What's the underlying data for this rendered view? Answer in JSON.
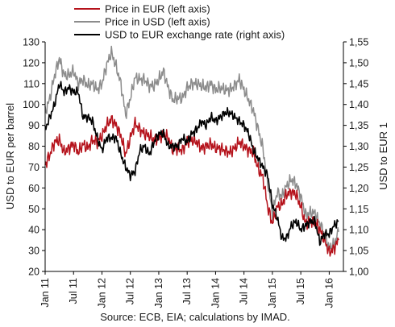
{
  "chart_data": {
    "type": "line",
    "title": "",
    "source": "Source: ECB, EIA; calculations by IMAD.",
    "left_axis": {
      "label": "USD to EUR per barrel",
      "range": [
        20,
        130
      ],
      "ticks": [
        "20",
        "30",
        "40",
        "50",
        "60",
        "70",
        "80",
        "90",
        "100",
        "110",
        "120",
        "130"
      ]
    },
    "right_axis": {
      "label": "USD to EUR 1",
      "range": [
        1.0,
        1.55
      ],
      "ticks": [
        "1,00",
        "1,05",
        "1,10",
        "1,15",
        "1,20",
        "1,25",
        "1,30",
        "1,35",
        "1,40",
        "1,45",
        "1,50",
        "1,55"
      ]
    },
    "x_axis": {
      "range": [
        "2011-01",
        "2016-04"
      ],
      "ticks": [
        "Jan 11",
        "Jul 11",
        "Jan 12",
        "Jul 12",
        "Jan 13",
        "Jul 13",
        "Jan 14",
        "Jul 14",
        "Jan 15",
        "Jul 15",
        "Jan 16"
      ]
    },
    "grid": false,
    "legend_position": "top-left",
    "x": [
      "2011-01",
      "2011-02",
      "2011-03",
      "2011-04",
      "2011-05",
      "2011-06",
      "2011-07",
      "2011-08",
      "2011-09",
      "2011-10",
      "2011-11",
      "2011-12",
      "2012-01",
      "2012-02",
      "2012-03",
      "2012-04",
      "2012-05",
      "2012-06",
      "2012-07",
      "2012-08",
      "2012-09",
      "2012-10",
      "2012-11",
      "2012-12",
      "2013-01",
      "2013-02",
      "2013-03",
      "2013-04",
      "2013-05",
      "2013-06",
      "2013-07",
      "2013-08",
      "2013-09",
      "2013-10",
      "2013-11",
      "2013-12",
      "2014-01",
      "2014-02",
      "2014-03",
      "2014-04",
      "2014-05",
      "2014-06",
      "2014-07",
      "2014-08",
      "2014-09",
      "2014-10",
      "2014-11",
      "2014-12",
      "2015-01",
      "2015-02",
      "2015-03",
      "2015-04",
      "2015-05",
      "2015-06",
      "2015-07",
      "2015-08",
      "2015-09",
      "2015-10",
      "2015-11",
      "2015-12",
      "2016-01",
      "2016-02",
      "2016-03"
    ],
    "series": [
      {
        "name": "Price in EUR (left axis)",
        "axis": "left",
        "color": "#b5121b",
        "values": [
          71,
          76,
          82,
          83,
          77,
          79,
          81,
          77,
          81,
          79,
          83,
          82,
          85,
          90,
          93,
          90,
          85,
          76,
          84,
          91,
          88,
          86,
          85,
          83,
          84,
          86,
          84,
          78,
          79,
          78,
          82,
          83,
          82,
          79,
          80,
          81,
          79,
          79,
          78,
          77,
          79,
          82,
          80,
          78,
          77,
          69,
          65,
          51,
          43,
          51,
          52,
          57,
          58,
          57,
          51,
          43,
          44,
          44,
          40,
          35,
          29,
          31,
          35
        ]
      },
      {
        "name": "Price in USD (left axis)",
        "axis": "left",
        "color": "#8c8c8c",
        "values": [
          96,
          103,
          114,
          122,
          114,
          114,
          116,
          110,
          112,
          109,
          110,
          107,
          110,
          119,
          125,
          118,
          110,
          95,
          103,
          113,
          112,
          112,
          109,
          109,
          112,
          116,
          108,
          102,
          103,
          103,
          108,
          110,
          110,
          109,
          108,
          110,
          107,
          108,
          107,
          107,
          109,
          112,
          107,
          102,
          97,
          88,
          79,
          63,
          48,
          58,
          56,
          61,
          64,
          62,
          56,
          47,
          48,
          48,
          43,
          38,
          31,
          33,
          39
        ]
      },
      {
        "name": "USD to EUR exchange rate (right axis)",
        "axis": "right",
        "color": "#000000",
        "values": [
          1.34,
          1.37,
          1.4,
          1.45,
          1.43,
          1.44,
          1.43,
          1.43,
          1.37,
          1.37,
          1.36,
          1.32,
          1.29,
          1.32,
          1.32,
          1.32,
          1.28,
          1.25,
          1.23,
          1.24,
          1.29,
          1.3,
          1.28,
          1.31,
          1.33,
          1.33,
          1.3,
          1.3,
          1.3,
          1.32,
          1.31,
          1.33,
          1.34,
          1.36,
          1.35,
          1.37,
          1.36,
          1.37,
          1.38,
          1.38,
          1.37,
          1.36,
          1.35,
          1.33,
          1.29,
          1.27,
          1.25,
          1.23,
          1.16,
          1.13,
          1.08,
          1.08,
          1.11,
          1.12,
          1.1,
          1.11,
          1.12,
          1.12,
          1.07,
          1.09,
          1.09,
          1.11,
          1.12
        ]
      }
    ]
  },
  "colors": {
    "axis": "#000000",
    "text": "#1a1a1a",
    "background": "#ffffff"
  }
}
